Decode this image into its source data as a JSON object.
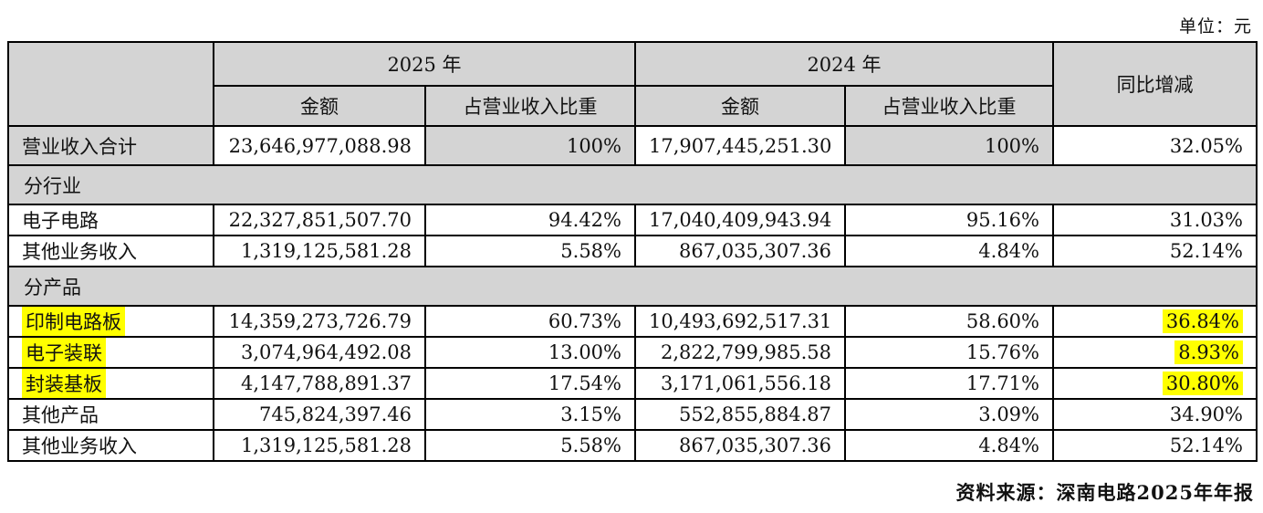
{
  "unit_label": "单位：元",
  "source_label": "资料来源：深南电路2025年年报",
  "colors": {
    "header_bg": "#d4d4d4",
    "highlight": "#ffff00",
    "border": "#000000"
  },
  "table": {
    "headers": {
      "year_2025": "2025 年",
      "year_2024": "2024 年",
      "amount": "金额",
      "share": "占营业收入比重",
      "yoy": "同比增减"
    },
    "rows": [
      {
        "type": "total",
        "label": "营业收入合计",
        "amount_2025": "23,646,977,088.98",
        "share_2025": "100%",
        "amount_2024": "17,907,445,251.30",
        "share_2024": "100%",
        "yoy": "32.05%"
      },
      {
        "type": "section",
        "label": "分行业"
      },
      {
        "type": "data",
        "label": "电子电路",
        "amount_2025": "22,327,851,507.70",
        "share_2025": "94.42%",
        "amount_2024": "17,040,409,943.94",
        "share_2024": "95.16%",
        "yoy": "31.03%"
      },
      {
        "type": "data",
        "label": "其他业务收入",
        "amount_2025": "1,319,125,581.28",
        "share_2025": "5.58%",
        "amount_2024": "867,035,307.36",
        "share_2024": "4.84%",
        "yoy": "52.14%"
      },
      {
        "type": "section",
        "label": "分产品"
      },
      {
        "type": "data",
        "label": "印制电路板",
        "label_highlight": true,
        "amount_2025": "14,359,273,726.79",
        "share_2025": "60.73%",
        "amount_2024": "10,493,692,517.31",
        "share_2024": "58.60%",
        "yoy": "36.84%",
        "yoy_highlight": true
      },
      {
        "type": "data",
        "label": "电子装联",
        "label_highlight": true,
        "amount_2025": "3,074,964,492.08",
        "share_2025": "13.00%",
        "amount_2024": "2,822,799,985.58",
        "share_2024": "15.76%",
        "yoy": "8.93%",
        "yoy_highlight": true
      },
      {
        "type": "data",
        "label": "封装基板",
        "label_highlight": true,
        "amount_2025": "4,147,788,891.37",
        "share_2025": "17.54%",
        "amount_2024": "3,171,061,556.18",
        "share_2024": "17.71%",
        "yoy": "30.80%",
        "yoy_highlight": true
      },
      {
        "type": "data",
        "label": "其他产品",
        "amount_2025": "745,824,397.46",
        "share_2025": "3.15%",
        "amount_2024": "552,855,884.87",
        "share_2024": "3.09%",
        "yoy": "34.90%"
      },
      {
        "type": "data",
        "label": "其他业务收入",
        "amount_2025": "1,319,125,581.28",
        "share_2025": "5.58%",
        "amount_2024": "867,035,307.36",
        "share_2024": "4.84%",
        "yoy": "52.14%"
      }
    ]
  }
}
